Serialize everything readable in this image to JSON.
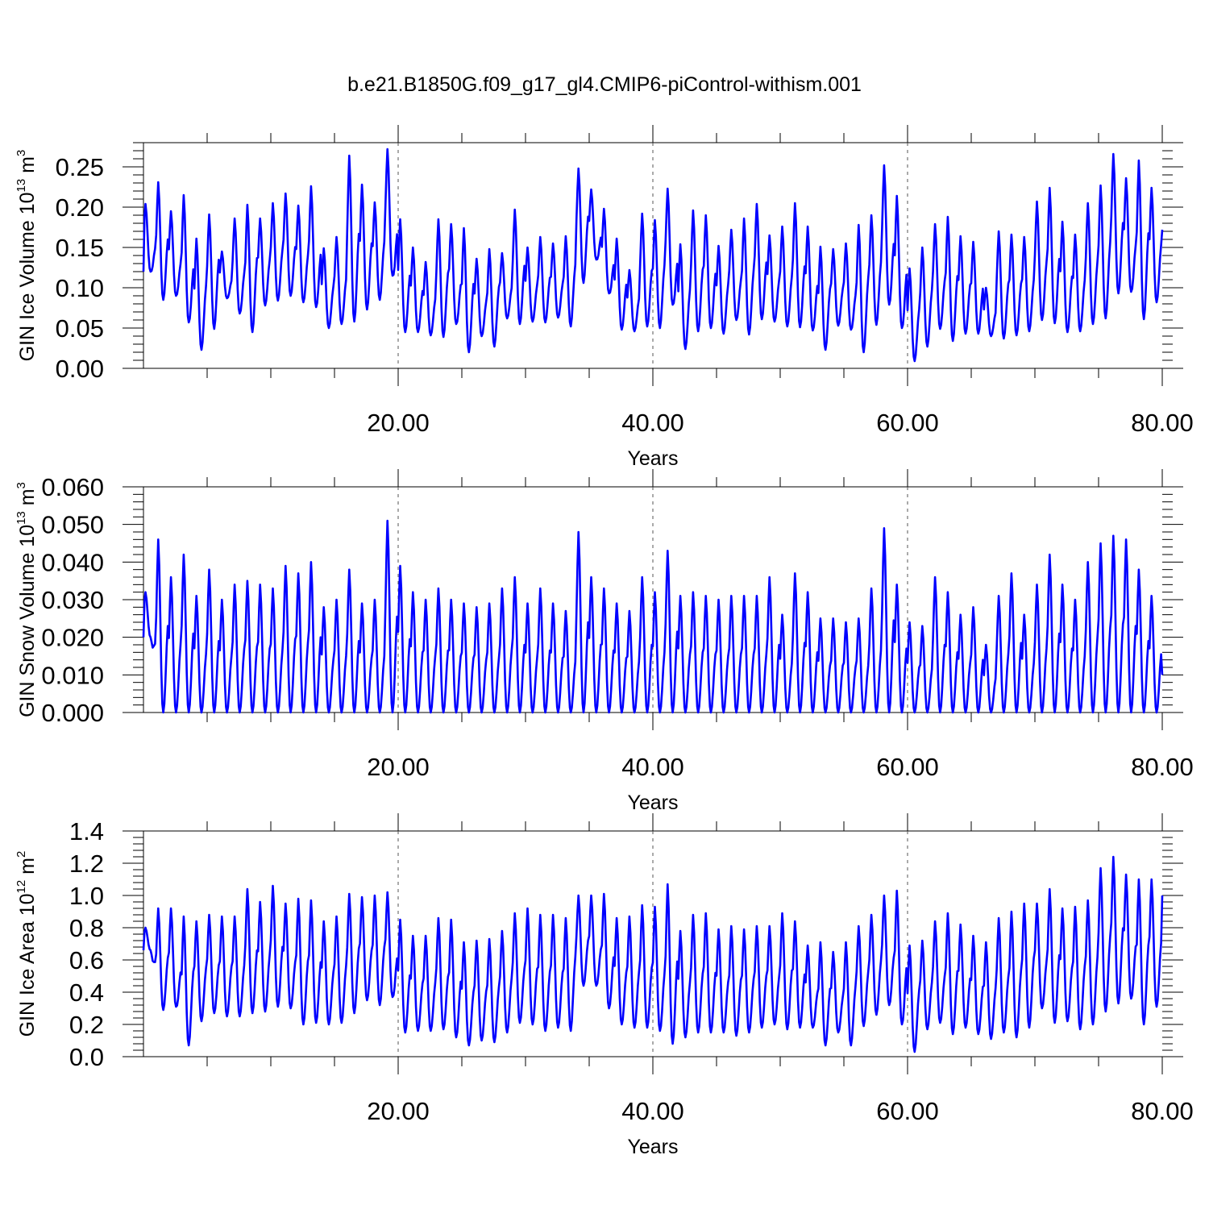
{
  "title": "b.e21.B1850G.f09_g17_gl4.CMIP6-piControl-withism.001",
  "chart_data": [
    {
      "type": "line",
      "title": "b.e21.B1850G.f09_g17_gl4.CMIP6-piControl-withism.001",
      "xlabel": "Years",
      "ylabel": {
        "prefix": "GIN Ice Volume 10",
        "exp": "13",
        "unit": " m",
        "unit_exp": "3"
      },
      "xlim": [
        0,
        80
      ],
      "ylim": [
        0,
        0.28
      ],
      "xticks": [
        20,
        40,
        60,
        80
      ],
      "xtick_labels": [
        "20.00",
        "40.00",
        "60.00",
        "80.00"
      ],
      "yticks": [
        0,
        0.05,
        0.1,
        0.15,
        0.2,
        0.25
      ],
      "ytick_labels": [
        "0.00",
        "0.05",
        "0.10",
        "0.15",
        "0.20",
        "0.25"
      ],
      "vlines": [
        20,
        40,
        60
      ],
      "color": "#0000ff",
      "x_start": 0,
      "x_step": 1,
      "series_note": "annual cycle: y = min + (max - min) * seasonal shape",
      "maxima": [
        0.204,
        0.231,
        0.195,
        0.215,
        0.161,
        0.191,
        0.145,
        0.186,
        0.203,
        0.186,
        0.205,
        0.217,
        0.202,
        0.226,
        0.149,
        0.163,
        0.264,
        0.228,
        0.206,
        0.272,
        0.185,
        0.15,
        0.132,
        0.185,
        0.179,
        0.174,
        0.136,
        0.148,
        0.143,
        0.197,
        0.15,
        0.163,
        0.155,
        0.164,
        0.248,
        0.222,
        0.198,
        0.161,
        0.122,
        0.192,
        0.184,
        0.223,
        0.154,
        0.196,
        0.19,
        0.152,
        0.172,
        0.186,
        0.204,
        0.165,
        0.176,
        0.205,
        0.176,
        0.151,
        0.148,
        0.155,
        0.178,
        0.19,
        0.252,
        0.214,
        0.124,
        0.15,
        0.179,
        0.188,
        0.164,
        0.157,
        0.1,
        0.17,
        0.166,
        0.163,
        0.207,
        0.224,
        0.182,
        0.166,
        0.205,
        0.227,
        0.266,
        0.236,
        0.258,
        0.224
      ],
      "minima": [
        0.12,
        0.085,
        0.09,
        0.057,
        0.023,
        0.049,
        0.087,
        0.068,
        0.045,
        0.078,
        0.084,
        0.09,
        0.082,
        0.076,
        0.05,
        0.055,
        0.058,
        0.073,
        0.085,
        0.115,
        0.045,
        0.045,
        0.041,
        0.039,
        0.055,
        0.02,
        0.04,
        0.027,
        0.062,
        0.055,
        0.058,
        0.057,
        0.063,
        0.052,
        0.106,
        0.135,
        0.093,
        0.048,
        0.046,
        0.052,
        0.05,
        0.079,
        0.024,
        0.046,
        0.05,
        0.043,
        0.06,
        0.042,
        0.061,
        0.058,
        0.052,
        0.051,
        0.047,
        0.023,
        0.053,
        0.048,
        0.02,
        0.054,
        0.079,
        0.05,
        0.009,
        0.027,
        0.049,
        0.034,
        0.043,
        0.043,
        0.04,
        0.037,
        0.041,
        0.046,
        0.06,
        0.056,
        0.045,
        0.046,
        0.055,
        0.062,
        0.093,
        0.095,
        0.061,
        0.082
      ],
      "end_value": 0.172
    },
    {
      "type": "line",
      "xlabel": "Years",
      "ylabel": {
        "prefix": "GIN Snow Volume 10",
        "exp": "13",
        "unit": " m",
        "unit_exp": "3"
      },
      "xlim": [
        0,
        80
      ],
      "ylim": [
        0,
        0.06
      ],
      "xticks": [
        20,
        40,
        60,
        80
      ],
      "xtick_labels": [
        "20.00",
        "40.00",
        "60.00",
        "80.00"
      ],
      "yticks": [
        0,
        0.01,
        0.02,
        0.03,
        0.04,
        0.05,
        0.06
      ],
      "ytick_labels": [
        "0.000",
        "0.010",
        "0.020",
        "0.030",
        "0.040",
        "0.050",
        "0.060"
      ],
      "vlines": [
        20,
        40,
        60
      ],
      "color": "#0000ff",
      "x_start": 0,
      "x_step": 1,
      "maxima": [
        0.032,
        0.046,
        0.036,
        0.042,
        0.031,
        0.038,
        0.03,
        0.034,
        0.035,
        0.034,
        0.033,
        0.039,
        0.037,
        0.04,
        0.028,
        0.03,
        0.038,
        0.029,
        0.03,
        0.051,
        0.039,
        0.032,
        0.03,
        0.033,
        0.03,
        0.029,
        0.028,
        0.029,
        0.033,
        0.036,
        0.029,
        0.033,
        0.029,
        0.027,
        0.048,
        0.036,
        0.033,
        0.029,
        0.027,
        0.036,
        0.032,
        0.043,
        0.031,
        0.032,
        0.031,
        0.03,
        0.031,
        0.031,
        0.031,
        0.036,
        0.026,
        0.037,
        0.032,
        0.025,
        0.025,
        0.024,
        0.025,
        0.033,
        0.049,
        0.034,
        0.024,
        0.023,
        0.036,
        0.032,
        0.026,
        0.028,
        0.018,
        0.031,
        0.037,
        0.026,
        0.034,
        0.042,
        0.034,
        0.03,
        0.04,
        0.045,
        0.047,
        0.046,
        0.038,
        0.031
      ],
      "minima": [
        0.02,
        0.0,
        0.0,
        0.0,
        0.0,
        0.0,
        0.0,
        0.0,
        0.0,
        0.0,
        0.0,
        0.0,
        0.0,
        0.0,
        0.0,
        0.0,
        0.0,
        0.0,
        0.0,
        0.0,
        0.0,
        0.0,
        0.0,
        0.0,
        0.0,
        0.0,
        0.0,
        0.0,
        0.0,
        0.0,
        0.0,
        0.0,
        0.0,
        0.0,
        0.0,
        0.0,
        0.0,
        0.0,
        0.0,
        0.0,
        0.0,
        0.0,
        0.0,
        0.0,
        0.0,
        0.0,
        0.0,
        0.0,
        0.0,
        0.0,
        0.0,
        0.0,
        0.0,
        0.0,
        0.0,
        0.0,
        0.0,
        0.0,
        0.0,
        0.0,
        0.0,
        0.0,
        0.0,
        0.0,
        0.0,
        0.0,
        0.0,
        0.0,
        0.0,
        0.0,
        0.0,
        0.0,
        0.0,
        0.0,
        0.0,
        0.0,
        0.0,
        0.0,
        0.0,
        0.0
      ],
      "end_value": 0.01
    },
    {
      "type": "line",
      "xlabel": "Years",
      "ylabel": {
        "prefix": "GIN Ice Area 10",
        "exp": "12",
        "unit": " m",
        "unit_exp": "2"
      },
      "xlim": [
        0,
        80
      ],
      "ylim": [
        0,
        1.4
      ],
      "xticks": [
        20,
        40,
        60,
        80
      ],
      "xtick_labels": [
        "20.00",
        "40.00",
        "60.00",
        "80.00"
      ],
      "yticks": [
        0,
        0.2,
        0.4,
        0.6,
        0.8,
        1.0,
        1.2,
        1.4
      ],
      "ytick_labels": [
        "0.0",
        "0.2",
        "0.4",
        "0.6",
        "0.8",
        "1.0",
        "1.2",
        "1.4"
      ],
      "vlines": [
        20,
        40,
        60
      ],
      "color": "#0000ff",
      "x_start": 0,
      "x_step": 1,
      "maxima": [
        0.8,
        0.92,
        0.92,
        0.87,
        0.84,
        0.88,
        0.87,
        0.87,
        1.04,
        0.96,
        1.06,
        0.95,
        0.98,
        0.97,
        0.84,
        0.87,
        1.01,
        0.99,
        1.0,
        1.02,
        0.85,
        0.75,
        0.75,
        0.86,
        0.85,
        0.71,
        0.72,
        0.73,
        0.78,
        0.89,
        0.92,
        0.88,
        0.88,
        0.86,
        1.0,
        1.0,
        1.01,
        0.86,
        0.87,
        0.94,
        0.93,
        1.07,
        0.78,
        0.88,
        0.89,
        0.79,
        0.81,
        0.79,
        0.81,
        0.81,
        0.89,
        0.84,
        0.69,
        0.71,
        0.65,
        0.71,
        0.81,
        0.88,
        1.0,
        1.03,
        0.69,
        0.72,
        0.84,
        0.89,
        0.82,
        0.75,
        0.71,
        0.86,
        0.9,
        0.95,
        0.95,
        1.04,
        0.92,
        0.93,
        0.97,
        1.17,
        1.24,
        1.13,
        1.1,
        1.1
      ],
      "minima": [
        0.66,
        0.29,
        0.31,
        0.07,
        0.22,
        0.27,
        0.25,
        0.25,
        0.27,
        0.28,
        0.31,
        0.3,
        0.2,
        0.21,
        0.2,
        0.21,
        0.27,
        0.35,
        0.32,
        0.37,
        0.15,
        0.16,
        0.16,
        0.17,
        0.12,
        0.07,
        0.1,
        0.09,
        0.15,
        0.21,
        0.2,
        0.16,
        0.18,
        0.16,
        0.44,
        0.44,
        0.3,
        0.2,
        0.18,
        0.18,
        0.16,
        0.08,
        0.12,
        0.15,
        0.15,
        0.15,
        0.13,
        0.15,
        0.18,
        0.2,
        0.17,
        0.18,
        0.18,
        0.07,
        0.15,
        0.07,
        0.19,
        0.26,
        0.32,
        0.2,
        0.03,
        0.17,
        0.21,
        0.14,
        0.18,
        0.14,
        0.11,
        0.15,
        0.12,
        0.18,
        0.3,
        0.21,
        0.22,
        0.17,
        0.2,
        0.28,
        0.33,
        0.36,
        0.2,
        0.31
      ],
      "end_value": 1.0
    }
  ]
}
